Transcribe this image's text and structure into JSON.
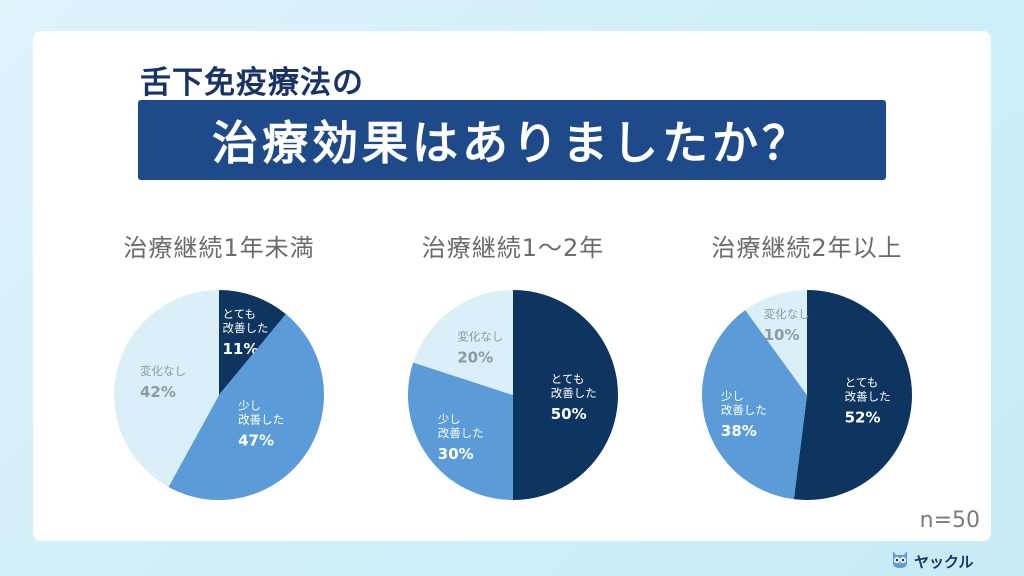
{
  "header": {
    "subtitle": "舌下免疫療法の",
    "title": "治療効果はありましたか？"
  },
  "footer": {
    "n_label": "n=50",
    "brand": "ヤックル"
  },
  "colors": {
    "background": "#d8f1fa",
    "title_band": "#1f4a8a",
    "title_text": "#1a3366",
    "very_improved": "#0e3560",
    "slightly_improved": "#5b9cd8",
    "no_change": "#dbeff8"
  },
  "chart_data": [
    {
      "type": "pie",
      "title": "治療継続1年未満",
      "slices": [
        {
          "label": "とても\n改善した",
          "value": 11,
          "pct": "11%",
          "color": "#0e3560"
        },
        {
          "label": "少し\n改善した",
          "value": 47,
          "pct": "47%",
          "color": "#5b9cd8"
        },
        {
          "label": "変化なし",
          "value": 42,
          "pct": "42%",
          "color": "#dbeff8"
        }
      ]
    },
    {
      "type": "pie",
      "title": "治療継続1〜2年",
      "slices": [
        {
          "label": "とても\n改善した",
          "value": 50,
          "pct": "50%",
          "color": "#0e3560"
        },
        {
          "label": "少し\n改善した",
          "value": 30,
          "pct": "30%",
          "color": "#5b9cd8"
        },
        {
          "label": "変化なし",
          "value": 20,
          "pct": "20%",
          "color": "#dbeff8"
        }
      ]
    },
    {
      "type": "pie",
      "title": "治療継続2年以上",
      "slices": [
        {
          "label": "とても\n改善した",
          "value": 52,
          "pct": "52%",
          "color": "#0e3560"
        },
        {
          "label": "少し\n改善した",
          "value": 38,
          "pct": "38%",
          "color": "#5b9cd8"
        },
        {
          "label": "変化なし",
          "value": 10,
          "pct": "10%",
          "color": "#dbeff8"
        }
      ]
    }
  ]
}
